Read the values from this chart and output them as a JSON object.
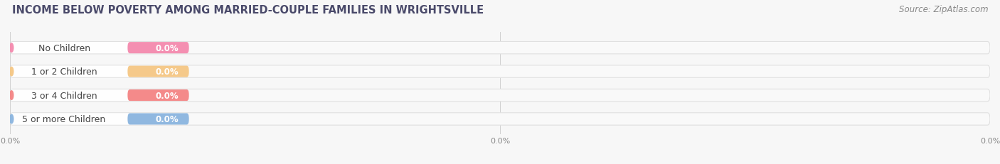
{
  "title": "INCOME BELOW POVERTY AMONG MARRIED-COUPLE FAMILIES IN WRIGHTSVILLE",
  "source": "Source: ZipAtlas.com",
  "categories": [
    "No Children",
    "1 or 2 Children",
    "3 or 4 Children",
    "5 or more Children"
  ],
  "values": [
    0.0,
    0.0,
    0.0,
    0.0
  ],
  "bar_colors": [
    "#f48fb1",
    "#f5c98a",
    "#f48a8a",
    "#90b8e0"
  ],
  "bar_colors_light": [
    "#fce4ec",
    "#fdf3e3",
    "#fce8e8",
    "#e3eef8"
  ],
  "bg_color": "#f7f7f7",
  "title_color": "#4a4a6a",
  "source_color": "#888888",
  "label_color": "#444444",
  "value_text_color": "#ffffff",
  "xlim": [
    0,
    100
  ],
  "xtick_positions": [
    0,
    50,
    100
  ],
  "xtick_labels": [
    "0.0%",
    "0.0%",
    "0.0%"
  ],
  "title_fontsize": 10.5,
  "source_fontsize": 8.5,
  "label_fontsize": 9,
  "value_fontsize": 8.5,
  "bar_height": 0.52,
  "figsize": [
    14.06,
    2.32
  ],
  "dpi": 100
}
